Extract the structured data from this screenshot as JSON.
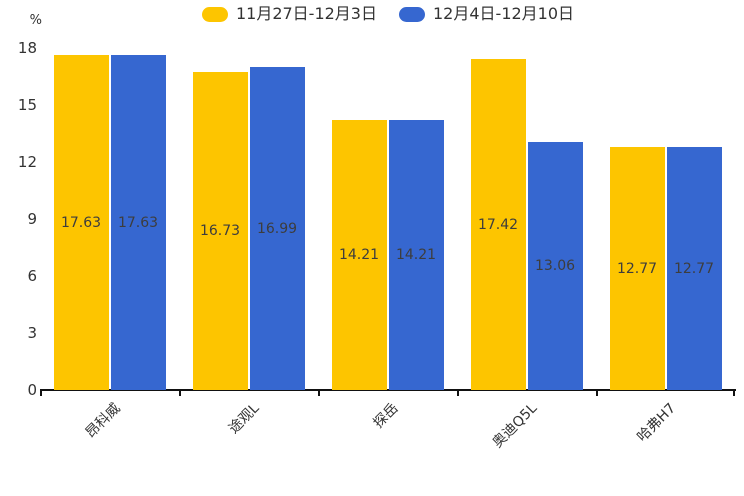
{
  "chart_data": {
    "type": "bar",
    "title": "",
    "xlabel": "",
    "ylabel": "%",
    "ylim": [
      0,
      18
    ],
    "yticks": [
      0,
      3,
      6,
      9,
      12,
      15,
      18
    ],
    "grid": false,
    "legend_position": "top-center",
    "value_labels": "inside-center",
    "categories": [
      "昂科威",
      "途观L",
      "探岳",
      "奥迪Q5L",
      "哈弗H7"
    ],
    "series": [
      {
        "name": "11月27日-12月3日",
        "color": "#FDC500",
        "values": [
          17.63,
          16.73,
          14.21,
          17.42,
          12.77
        ]
      },
      {
        "name": "12月4日-12月10日",
        "color": "#3667D0",
        "values": [
          17.63,
          16.99,
          14.21,
          13.06,
          12.77
        ]
      }
    ]
  },
  "legend": {
    "items": [
      {
        "label": "11月27日-12月3日",
        "color": "#FDC500"
      },
      {
        "label": "12月4日-12月10日",
        "color": "#3667D0"
      }
    ]
  },
  "colors": {
    "background": "#ffffff",
    "axis": "#111111",
    "tick_label": "#333333",
    "value_label": "#3d3d3d"
  }
}
